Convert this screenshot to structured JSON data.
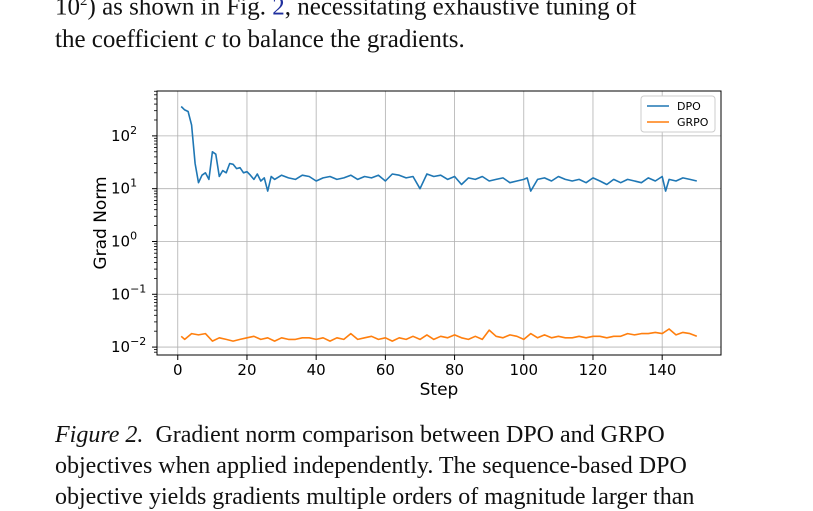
{
  "body_text": {
    "line1_prefix": "10",
    "line1_sup": "2",
    "line1_mid": ") as shown in Fig. ",
    "line1_ref": "2",
    "line1_suffix": ", necessitating exhaustive tuning of",
    "line2_prefix": "the coefficient ",
    "line2_var": "c",
    "line2_suffix": " to balance the gradients."
  },
  "caption": {
    "label": "Figure 2.",
    "line1": "Gradient norm comparison between DPO and GRPO",
    "line2": "objectives when applied independently. The sequence-based DPO",
    "line3": "objective yields gradients multiple orders of magnitude larger than"
  },
  "chart_data": {
    "type": "line",
    "xlabel": "Step",
    "ylabel": "Grad Norm",
    "xlim": [
      -6,
      157
    ],
    "ylim_log10": [
      -2.15,
      2.85
    ],
    "yscale": "log",
    "x_ticks": [
      0,
      20,
      40,
      60,
      80,
      100,
      120,
      140
    ],
    "y_ticks": [
      {
        "exp": -2,
        "label": "10",
        "sup": "−2"
      },
      {
        "exp": -1,
        "label": "10",
        "sup": "−1"
      },
      {
        "exp": 0,
        "label": "10",
        "sup": "0"
      },
      {
        "exp": 1,
        "label": "10",
        "sup": "1"
      },
      {
        "exp": 2,
        "label": "10",
        "sup": "2"
      }
    ],
    "grid": true,
    "legend_position": "top-right",
    "series": [
      {
        "name": "DPO",
        "color": "#1f77b4",
        "x": [
          1,
          2,
          3,
          4,
          5,
          6,
          7,
          8,
          9,
          10,
          11,
          12,
          13,
          14,
          15,
          16,
          17,
          18,
          19,
          20,
          21,
          22,
          23,
          24,
          25,
          26,
          27,
          28,
          30,
          32,
          34,
          36,
          38,
          40,
          42,
          44,
          46,
          48,
          50,
          52,
          54,
          56,
          58,
          60,
          62,
          64,
          66,
          68,
          70,
          72,
          74,
          76,
          78,
          80,
          82,
          84,
          86,
          88,
          90,
          92,
          94,
          96,
          98,
          100,
          101,
          102,
          104,
          106,
          108,
          110,
          112,
          114,
          116,
          118,
          120,
          122,
          124,
          126,
          128,
          130,
          132,
          134,
          136,
          138,
          140,
          141,
          142,
          144,
          146,
          148,
          150
        ],
        "y": [
          360,
          310,
          290,
          160,
          30,
          13,
          18,
          20,
          15,
          50,
          45,
          17,
          22,
          20,
          30,
          29,
          24,
          25,
          20,
          21,
          18,
          15,
          19,
          14,
          16,
          9,
          17,
          15,
          18,
          16,
          15,
          18,
          17,
          14,
          16,
          17,
          15,
          16,
          18,
          15,
          17,
          16,
          18,
          14,
          19,
          18,
          16,
          17,
          10,
          19,
          17,
          18,
          15,
          17,
          12,
          16,
          15,
          17,
          14,
          15,
          16,
          13,
          14,
          15,
          16,
          9,
          15,
          16,
          14,
          17,
          15,
          14,
          15,
          13,
          16,
          14,
          12,
          15,
          13,
          15,
          14,
          13,
          16,
          14,
          17,
          9,
          15,
          14,
          16,
          15,
          14
        ]
      },
      {
        "name": "GRPO",
        "color": "#ff7f0e",
        "x": [
          1,
          2,
          4,
          6,
          8,
          10,
          12,
          14,
          16,
          18,
          20,
          22,
          24,
          26,
          28,
          30,
          32,
          34,
          36,
          38,
          40,
          42,
          44,
          46,
          48,
          50,
          52,
          54,
          56,
          58,
          60,
          62,
          64,
          66,
          68,
          70,
          72,
          74,
          76,
          78,
          80,
          82,
          84,
          86,
          88,
          90,
          92,
          94,
          96,
          98,
          100,
          102,
          104,
          106,
          108,
          110,
          112,
          114,
          116,
          118,
          120,
          122,
          124,
          126,
          128,
          130,
          132,
          134,
          136,
          138,
          140,
          142,
          144,
          146,
          148,
          150
        ],
        "y": [
          0.016,
          0.014,
          0.018,
          0.017,
          0.018,
          0.013,
          0.015,
          0.014,
          0.013,
          0.014,
          0.015,
          0.016,
          0.014,
          0.015,
          0.013,
          0.015,
          0.014,
          0.014,
          0.015,
          0.015,
          0.014,
          0.015,
          0.013,
          0.015,
          0.014,
          0.018,
          0.014,
          0.015,
          0.016,
          0.014,
          0.015,
          0.013,
          0.015,
          0.014,
          0.016,
          0.014,
          0.017,
          0.014,
          0.016,
          0.015,
          0.017,
          0.015,
          0.014,
          0.016,
          0.014,
          0.021,
          0.016,
          0.015,
          0.017,
          0.016,
          0.014,
          0.018,
          0.015,
          0.017,
          0.015,
          0.016,
          0.015,
          0.015,
          0.016,
          0.015,
          0.016,
          0.016,
          0.015,
          0.016,
          0.016,
          0.018,
          0.017,
          0.018,
          0.018,
          0.019,
          0.018,
          0.022,
          0.017,
          0.019,
          0.018,
          0.016
        ]
      }
    ]
  }
}
